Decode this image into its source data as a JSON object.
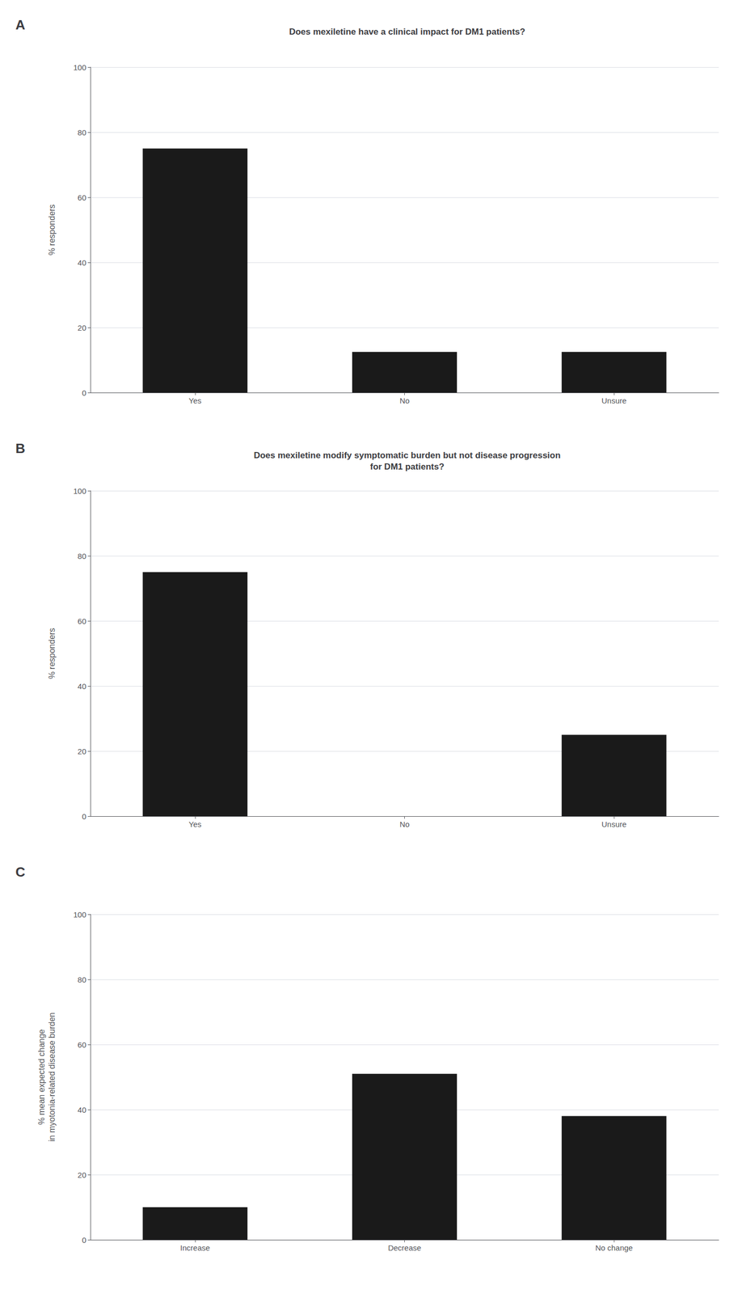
{
  "chart_data": [
    {
      "type": "bar",
      "annotations": [
        "A"
      ],
      "title": "Does mexiletine have a clinical impact for DM1 patients?",
      "categories": [
        "Yes",
        "No",
        "Unsure"
      ],
      "values": [
        75,
        12.5,
        12.5
      ],
      "ylabel": "% responders",
      "color": "#1a1a1a",
      "ylim": [
        0,
        100
      ],
      "yticks": [
        0,
        20,
        40,
        60,
        80,
        100
      ],
      "grid": true
    },
    {
      "type": "bar",
      "annotations": [
        "B"
      ],
      "title": "Does mexiletine modify symptomatic burden but not disease progression\nfor DM1 patients?",
      "categories": [
        "Yes",
        "No",
        "Unsure"
      ],
      "values": [
        75,
        0,
        25
      ],
      "ylabel": "% responders",
      "color": "#1a1a1a",
      "ylim": [
        0,
        100
      ],
      "yticks": [
        0,
        20,
        40,
        60,
        80,
        100
      ],
      "grid": true
    },
    {
      "type": "bar",
      "annotations": [
        "C"
      ],
      "categories": [
        "Increase",
        "Decrease",
        "No change"
      ],
      "values": [
        10,
        51,
        38
      ],
      "ylabel": "% mean expected change\nin myotonia-related disease burden",
      "color": "#1a1a1a",
      "ylim": [
        0,
        100
      ],
      "yticks": [
        0,
        20,
        40,
        60,
        80,
        100
      ],
      "grid": true
    }
  ]
}
